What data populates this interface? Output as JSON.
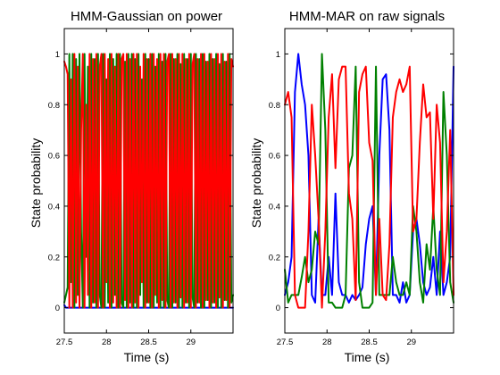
{
  "chart_data": [
    {
      "type": "line",
      "title": "HMM-Gaussian on power",
      "xlabel": "Time (s)",
      "ylabel": "State probability",
      "xlim": [
        27.5,
        29.5
      ],
      "ylim": [
        -0.1,
        1.1
      ],
      "xticks": [
        27.5,
        28,
        28.5,
        29
      ],
      "xtick_labels": [
        "27.5",
        "28",
        "28.5",
        "29"
      ],
      "yticks": [
        0,
        0.2,
        0.4,
        0.6,
        0.8,
        1
      ],
      "ytick_labels": [
        "0",
        "0.2",
        "0.4",
        "0.6",
        "0.8",
        "1"
      ],
      "grid": false,
      "x": [
        27.5,
        27.52,
        27.54,
        27.56,
        27.58,
        27.6,
        27.62,
        27.64,
        27.66,
        27.68,
        27.7,
        27.72,
        27.74,
        27.76,
        27.78,
        27.8,
        27.82,
        27.84,
        27.86,
        27.88,
        27.9,
        27.92,
        27.94,
        27.96,
        27.98,
        28,
        28.02,
        28.04,
        28.06,
        28.08,
        28.1,
        28.12,
        28.14,
        28.16,
        28.18,
        28.2,
        28.22,
        28.24,
        28.26,
        28.28,
        28.3,
        28.32,
        28.34,
        28.36,
        28.38,
        28.4,
        28.42,
        28.44,
        28.46,
        28.48,
        28.5,
        28.52,
        28.54,
        28.56,
        28.58,
        28.6,
        28.62,
        28.64,
        28.66,
        28.68,
        28.7,
        28.72,
        28.74,
        28.76,
        28.78,
        28.8,
        28.82,
        28.84,
        28.86,
        28.88,
        28.9,
        28.92,
        28.94,
        28.96,
        28.98,
        29,
        29.02,
        29.04,
        29.06,
        29.08,
        29.1,
        29.12,
        29.14,
        29.16,
        29.18,
        29.2,
        29.22,
        29.24,
        29.26,
        29.28,
        29.3,
        29.32,
        29.34,
        29.36,
        29.38,
        29.4,
        29.42,
        29.44,
        29.46,
        29.48,
        29.5
      ],
      "series": [
        {
          "color": "#0000ff",
          "values": [
            0.01,
            0,
            0,
            0,
            0,
            0,
            0,
            0,
            0,
            0,
            0,
            0,
            0,
            0,
            0,
            0,
            0,
            0,
            0,
            0,
            0,
            0,
            0,
            0,
            0,
            0,
            0,
            0,
            0,
            0,
            0,
            0,
            0,
            0,
            0,
            0,
            0,
            0,
            0,
            0,
            0,
            0,
            0,
            0,
            0,
            0,
            0,
            0,
            0,
            0,
            0,
            0,
            0,
            0,
            0,
            0,
            0,
            0,
            0,
            0,
            0,
            0,
            0,
            0,
            0,
            0,
            0,
            0,
            0,
            0,
            0,
            0,
            0,
            0,
            0,
            0,
            0,
            0,
            0,
            0,
            0,
            0,
            0,
            0,
            0,
            0,
            0,
            0,
            0,
            0,
            0,
            0,
            0,
            0,
            0,
            0,
            0,
            0,
            0,
            0,
            0
          ]
        },
        {
          "color": "#008000",
          "values": [
            0.02,
            0.05,
            0.08,
            1,
            0.1,
            1,
            0,
            0.98,
            0.05,
            1,
            0.3,
            0,
            1,
            0.2,
            0.95,
            0,
            1,
            0.02,
            0.98,
            0,
            1,
            0.05,
            0,
            1,
            0,
            0.9,
            0.02,
            1,
            0,
            0.98,
            0.05,
            1,
            0,
            1,
            0.02,
            0,
            0.97,
            0,
            1,
            0.02,
            1,
            0,
            0.98,
            0,
            1,
            0.05,
            0.9,
            0,
            1,
            0.02,
            0.98,
            0,
            1,
            0,
            0.95,
            0.02,
            1,
            0,
            0.97,
            0,
            1,
            0.03,
            0,
            1,
            0,
            0.98,
            0.02,
            1,
            0,
            0.96,
            0,
            1,
            0.02,
            0.98,
            0,
            1,
            0.04,
            0,
            1,
            0.02,
            0.98,
            0,
            1,
            0,
            0.97,
            0.03,
            1,
            0,
            0.98,
            0.02,
            1,
            0,
            0.96,
            0,
            1,
            0.03,
            0.97,
            0,
            1,
            0.02,
            0.05
          ]
        },
        {
          "color": "#ff0000",
          "values": [
            0.97,
            0.95,
            0.92,
            0,
            0.9,
            0,
            1,
            0.02,
            0.95,
            0,
            0.7,
            1,
            0,
            0.8,
            0.05,
            1,
            0,
            0.98,
            0.02,
            1,
            0,
            0.95,
            1,
            0,
            1,
            0.1,
            0.98,
            0,
            1,
            0.02,
            0.95,
            0,
            1,
            0,
            0.98,
            1,
            0.03,
            1,
            0,
            0.98,
            0,
            1,
            0.02,
            1,
            0,
            0.95,
            0.1,
            1,
            0,
            0.98,
            0.02,
            1,
            0,
            1,
            0.05,
            0.98,
            0,
            1,
            0.03,
            1,
            0,
            0.97,
            1,
            0,
            1,
            0.02,
            0.98,
            0,
            1,
            0.04,
            1,
            0,
            0.98,
            0.02,
            1,
            0,
            0.96,
            1,
            0,
            0.98,
            0.02,
            1,
            0,
            1,
            0.03,
            0.97,
            0,
            1,
            0.02,
            0.98,
            0,
            1,
            0.04,
            1,
            0,
            0.97,
            0.03,
            1,
            0,
            0.98,
            0.95
          ]
        }
      ]
    },
    {
      "type": "line",
      "title": "HMM-MAR on raw signals",
      "xlabel": "Time (s)",
      "ylabel": "State probability",
      "xlim": [
        27.5,
        29.5
      ],
      "ylim": [
        -0.1,
        1.1
      ],
      "xticks": [
        27.5,
        28,
        28.5,
        29
      ],
      "xtick_labels": [
        "27.5",
        "28",
        "28.5",
        "29"
      ],
      "yticks": [
        0,
        0.2,
        0.4,
        0.6,
        0.8,
        1
      ],
      "ytick_labels": [
        "0",
        "0.2",
        "0.4",
        "0.6",
        "0.8",
        "1"
      ],
      "grid": false,
      "x": [
        27.5,
        27.54,
        27.58,
        27.62,
        27.66,
        27.7,
        27.74,
        27.78,
        27.82,
        27.86,
        27.9,
        27.94,
        27.98,
        28.02,
        28.06,
        28.1,
        28.14,
        28.18,
        28.22,
        28.26,
        28.3,
        28.34,
        28.38,
        28.42,
        28.46,
        28.5,
        28.54,
        28.58,
        28.62,
        28.66,
        28.7,
        28.74,
        28.78,
        28.82,
        28.86,
        28.9,
        28.94,
        28.98,
        29.02,
        29.06,
        29.1,
        29.14,
        29.18,
        29.22,
        29.26,
        29.3,
        29.34,
        29.38,
        29.42,
        29.46,
        29.5
      ],
      "series": [
        {
          "color": "#0000ff",
          "values": [
            0.05,
            0.1,
            0.2,
            0.85,
            1,
            0.88,
            0.8,
            0.6,
            0.05,
            0.02,
            0.35,
            0.05,
            0.05,
            0.2,
            0.05,
            0.45,
            0.1,
            0.05,
            0.05,
            0.02,
            0.05,
            0.03,
            0.05,
            0.08,
            0.25,
            0.35,
            0.4,
            0.05,
            0.6,
            0.9,
            0.92,
            0.7,
            0.05,
            0.05,
            0.02,
            0.1,
            0.02,
            0.05,
            0.3,
            0.35,
            0.25,
            0.1,
            0.05,
            0.08,
            0.2,
            0.05,
            0.3,
            0.05,
            0.1,
            0.2,
            0.95
          ]
        },
        {
          "color": "#008000",
          "values": [
            0.15,
            0.02,
            0.05,
            0.05,
            0.05,
            0.12,
            0.2,
            0.1,
            0.15,
            0.3,
            0.25,
            1,
            0.7,
            0.02,
            0.02,
            0,
            0,
            0,
            0.05,
            0.55,
            0.6,
            0.95,
            0.1,
            0,
            0,
            0,
            0.02,
            0.95,
            0.05,
            0.05,
            0.05,
            0.05,
            0.2,
            0.1,
            0.05,
            0.05,
            0.1,
            0.05,
            0.4,
            0.3,
            0.1,
            0.02,
            0.25,
            0.15,
            0.4,
            0.15,
            0.05,
            0.85,
            0.6,
            0.1,
            0.02
          ]
        },
        {
          "color": "#ff0000",
          "values": [
            0.8,
            0.85,
            0.75,
            0.05,
            0,
            0,
            0,
            0.3,
            0.8,
            0.6,
            0.35,
            0,
            0.3,
            0.75,
            0.92,
            0.55,
            0.9,
            0.95,
            0.95,
            0.45,
            0.35,
            0.03,
            0.85,
            0.92,
            0.95,
            0.65,
            0.58,
            0.05,
            0.35,
            0.05,
            0.03,
            0.25,
            0.75,
            0.85,
            0.9,
            0.85,
            0.88,
            0.95,
            0.3,
            0.35,
            0.65,
            0.88,
            0.75,
            0.77,
            0.35,
            0.8,
            0.65,
            0.1,
            0.3,
            0.7,
            0.05
          ]
        }
      ]
    }
  ]
}
